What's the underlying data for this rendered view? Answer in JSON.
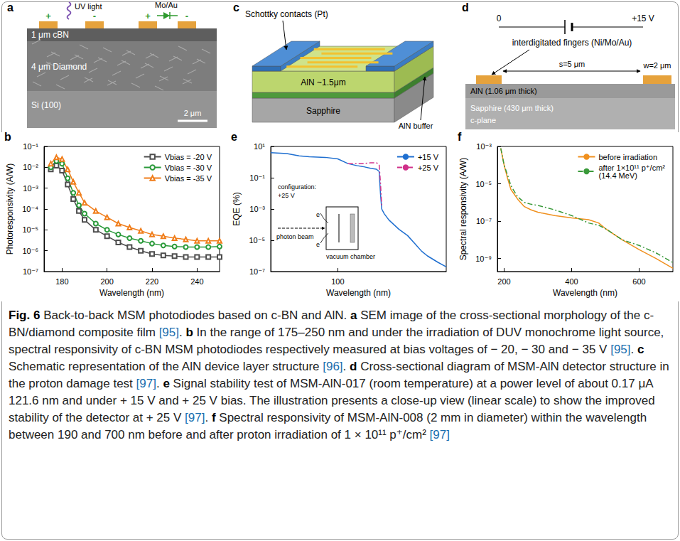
{
  "diagrams": {
    "a": {
      "panel": "a",
      "light": "UV light",
      "contact": "Mo/Au",
      "plus": "+",
      "minus": "-",
      "layers": [
        "1 μm cBN",
        "4 μm Diamond",
        "Si (100)"
      ],
      "scale_bar": "2 μm"
    },
    "c": {
      "panel": "c",
      "contacts": "Schottky contacts (Pt)",
      "layers": [
        "AlN ~1.5μm",
        "AlN buffer",
        "Sapphire"
      ]
    },
    "d": {
      "panel": "d",
      "ground": "0",
      "bias": "+15 V",
      "fingers": "interdigitated fingers (Ni/Mo/Au)",
      "spacing": "s=5 μm",
      "width": "w=2 μm",
      "layers": [
        "AlN (1.06 μm thick)",
        "Sapphire (430 μm thick)",
        "c-plane"
      ]
    }
  },
  "chart_data": [
    {
      "panel": "b",
      "type": "line",
      "xlabel": "Wavelength (nm)",
      "ylabel": "Photoresponsivity (A/W)",
      "log": "y",
      "grid": false,
      "legend": "upper right",
      "xlim": [
        172,
        250
      ],
      "xticks": [
        180,
        200,
        220,
        240
      ],
      "ylim": [
        1e-07,
        0.1
      ],
      "yticks": [
        {
          "value": 1e-07,
          "label": "10⁻⁷"
        },
        {
          "value": 1e-06,
          "label": "10⁻⁶"
        },
        {
          "value": 1e-05,
          "label": "10⁻⁵"
        },
        {
          "value": 0.0001,
          "label": "10⁻⁴"
        },
        {
          "value": 0.001,
          "label": "10⁻³"
        },
        {
          "value": 0.01,
          "label": "10⁻²"
        },
        {
          "value": 0.1,
          "label": "10⁻¹"
        }
      ],
      "x": [
        175,
        177.5,
        180,
        182.5,
        185,
        187.5,
        190,
        195,
        200,
        205,
        210,
        215,
        220,
        225,
        230,
        235,
        240,
        245,
        250
      ],
      "series": [
        {
          "name": "Vbias = -20 V",
          "color": "#4d4d4d",
          "marker": "open_square",
          "line_style": "solid",
          "values": [
            0.008,
            0.012,
            0.007,
            0.0015,
            0.0003,
            8e-05,
            3e-05,
            1e-05,
            5e-06,
            2.5e-06,
            1.5e-06,
            1e-06,
            7e-07,
            6e-07,
            5.5e-07,
            5e-07,
            5e-07,
            5e-07,
            5e-07
          ]
        },
        {
          "name": "Vbias = -30 V",
          "color": "#2a9a3a",
          "marker": "open_circle",
          "line_style": "solid",
          "values": [
            0.01,
            0.02,
            0.015,
            0.003,
            0.0006,
            0.00015,
            6e-05,
            2e-05,
            1e-05,
            6e-06,
            4e-06,
            3e-06,
            2.2e-06,
            1.8e-06,
            1.6e-06,
            1.5e-06,
            1.5e-06,
            1.5e-06,
            1.6e-06
          ]
        },
        {
          "name": "Vbias = -35 V",
          "color": "#f07d1a",
          "marker": "open_triangle",
          "line_style": "solid",
          "values": [
            0.015,
            0.03,
            0.025,
            0.008,
            0.002,
            0.0006,
            0.0002,
            8e-05,
            4e-05,
            2e-05,
            1.3e-05,
            9e-06,
            6e-06,
            5e-06,
            4e-06,
            3.5e-06,
            3e-06,
            3e-06,
            3e-06
          ]
        }
      ]
    },
    {
      "panel": "e",
      "type": "line",
      "xlabel": "Wavelength (nm)",
      "ylabel": "EQE (%)",
      "log": true,
      "grid": false,
      "legend": "upper right",
      "xlim": [
        30,
        700
      ],
      "xticks": [
        100
      ],
      "ylim": [
        1e-07,
        10.0
      ],
      "yticks": [
        {
          "value": 1e-07,
          "label": "10⁻⁷"
        },
        {
          "value": 1e-05,
          "label": "10⁻⁵"
        },
        {
          "value": 0.001,
          "label": "10⁻³"
        },
        {
          "value": 0.1,
          "label": "10⁻¹"
        },
        {
          "value": 10.0,
          "label": "10¹"
        }
      ],
      "x": [
        30,
        40,
        50,
        60,
        80,
        100,
        120,
        140,
        160,
        180,
        200,
        210,
        215,
        220,
        230,
        250,
        300,
        350,
        400,
        450,
        500,
        600,
        700
      ],
      "series": [
        {
          "name": "+15 V",
          "color": "#1f6fd0",
          "marker": "none",
          "line_style": "solid",
          "values": [
            4,
            3.5,
            2.5,
            2.2,
            2,
            1.6,
            0.8,
            0.6,
            0.5,
            0.4,
            0.35,
            0.25,
            0.01,
            0.001,
            0.0005,
            0.0002,
            5e-05,
            2e-05,
            6e-06,
            2e-06,
            1e-06,
            4e-07,
            2e-07
          ]
        },
        {
          "name": "+25 V",
          "color": "#d0308a",
          "marker": "none",
          "line_style": "dashdot",
          "values": [
            null,
            null,
            null,
            null,
            null,
            null,
            0.8,
            0.8,
            0.8,
            0.9,
            0.9,
            0.7,
            0.05,
            0.0015,
            null,
            null,
            null,
            null,
            null,
            null,
            null,
            null,
            null
          ]
        }
      ],
      "annotations": {
        "configuration": "configuration:",
        "bias": "+25 V",
        "electron": "e",
        "beam": "photon beam",
        "chamber": "vacuum chamber"
      }
    },
    {
      "panel": "f",
      "type": "line",
      "xlabel": "Wavelength (nm)",
      "ylabel": "Spectral responsivity (A/W)",
      "log": "y",
      "grid": false,
      "legend": "upper right",
      "xlim": [
        180,
        700
      ],
      "xticks": [
        200,
        400,
        600
      ],
      "ylim": [
        2e-10,
        0.001
      ],
      "yticks": [
        {
          "value": 1e-09,
          "label": "10⁻⁹"
        },
        {
          "value": 1e-07,
          "label": "10⁻⁷"
        },
        {
          "value": 1e-05,
          "label": "10⁻⁵"
        },
        {
          "value": 0.001,
          "label": "10⁻³"
        }
      ],
      "x": [
        190,
        200,
        210,
        220,
        240,
        260,
        280,
        300,
        350,
        400,
        450,
        480,
        500,
        550,
        600,
        650,
        700
      ],
      "series": [
        {
          "name": "before irradiation",
          "color": "#f0901e",
          "marker": "none",
          "line_style": "solid",
          "values": [
            0.0008,
            0.0001,
            2e-05,
            5e-06,
            1.5e-06,
            6e-07,
            4e-07,
            3e-07,
            2e-07,
            1.5e-07,
            1.2e-07,
            8e-08,
            4e-08,
            1e-08,
            3e-09,
            1e-09,
            3e-10
          ]
        },
        {
          "name": "after 1×10¹¹ p⁺/cm² (14.4 MeV)",
          "color": "#3a9a3a",
          "marker": "none",
          "line_style": "dashdot",
          "values": [
            0.0008,
            0.0001,
            3e-05,
            8e-06,
            2e-06,
            1e-06,
            8e-07,
            7e-07,
            4e-07,
            2e-07,
            8e-08,
            6e-08,
            4e-08,
            1e-08,
            5e-09,
            2e-09,
            6e-10
          ]
        }
      ]
    }
  ],
  "caption": {
    "figure": "Fig. 6",
    "text": "Back-to-back MSM photodiodes based on c-BN and AlN.",
    "parts": [
      {
        "letter": "a",
        "text": "SEM image of the cross-sectional morphology of the c-BN/diamond composite film [95]."
      },
      {
        "letter": "b",
        "text": "In the range of 175–250 nm and under the irradiation of DUV monochrome light source, spectral responsivity of c-BN MSM photodiodes respectively measured at bias voltages of − 20, − 30 and − 35 V [95]."
      },
      {
        "letter": "c",
        "text": "Schematic representation of the AlN device layer structure [96]."
      },
      {
        "letter": "d",
        "text": "Cross-sectional diagram of MSM-AlN detector structure in the proton damage test [97]."
      },
      {
        "letter": "e",
        "text": "Signal stability test of MSM-AlN-017 (room temperature) at a power level of about 0.17 μA 121.6 nm and under + 15 V and + 25 V bias. The illustration presents a close-up view (linear scale) to show the improved stability of the detector at + 25 V [97]."
      },
      {
        "letter": "f",
        "text": "Spectral responsivity of MSM-AlN-008 (2 mm in diameter) within the wavelength between 190 and 700 nm before and after proton irradiation of 1 × 10¹¹ p⁺/cm² [97]"
      }
    ]
  }
}
